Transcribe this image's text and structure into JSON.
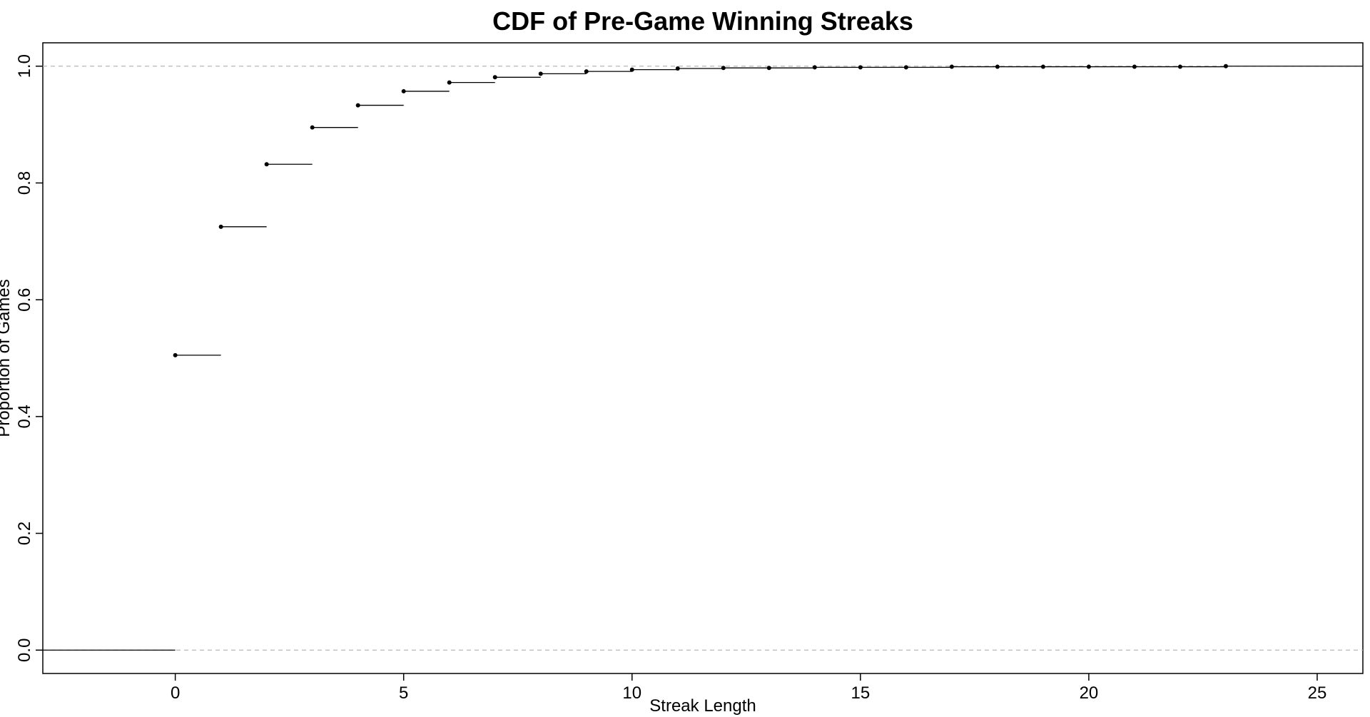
{
  "chart_data": {
    "type": "line",
    "title": "CDF of Pre-Game Winning Streaks",
    "xlabel": "Streak Length",
    "ylabel": "Proportion of Games",
    "xlim": [
      -2.9,
      26
    ],
    "ylim": [
      -0.04,
      1.04
    ],
    "xticks": [
      "0",
      "5",
      "10",
      "15",
      "20",
      "25"
    ],
    "yticks": [
      "0.0",
      "0.2",
      "0.4",
      "0.6",
      "0.8",
      "1.0"
    ],
    "grid": false,
    "reference_lines": [
      0,
      1
    ],
    "series": [
      {
        "x": [
          0,
          1,
          2,
          3,
          4,
          5,
          6,
          7,
          8,
          9,
          10,
          11,
          12,
          13,
          14,
          15,
          16,
          17,
          18,
          19,
          20,
          21,
          22,
          23
        ],
        "y": [
          0.505,
          0.725,
          0.832,
          0.895,
          0.933,
          0.957,
          0.972,
          0.981,
          0.987,
          0.991,
          0.994,
          0.996,
          0.997,
          0.997,
          0.998,
          0.998,
          0.998,
          0.999,
          0.999,
          0.999,
          0.999,
          0.999,
          0.999,
          1.0
        ]
      }
    ]
  }
}
